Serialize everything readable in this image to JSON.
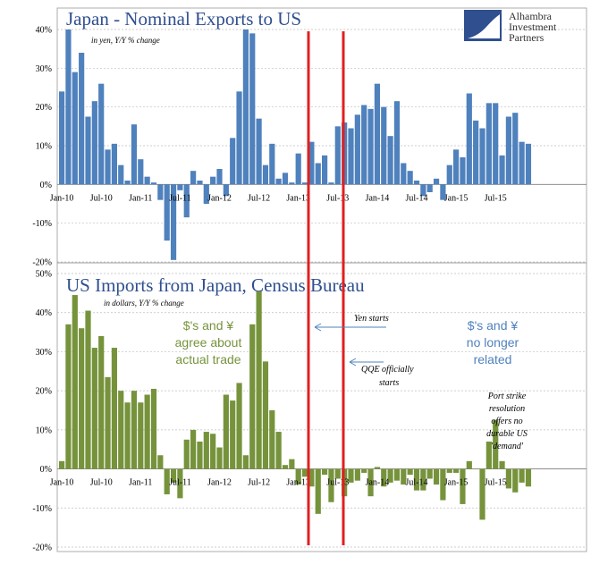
{
  "logo": {
    "line1": "Alhambra",
    "line2": "Investment",
    "line3": "Partners"
  },
  "chart_data": [
    {
      "type": "bar",
      "title": "Japan - Nominal Exports to US",
      "subtitle": "in yen, Y/Y % change",
      "color": "#4f81bd",
      "ylim": [
        -20,
        40
      ],
      "ytick_labels": [
        "40%",
        "30%",
        "20%",
        "10%",
        "0%",
        "-10%",
        "-20%"
      ],
      "ytick_values": [
        40,
        30,
        20,
        10,
        0,
        -10,
        -20
      ],
      "xtick_labels": [
        "Jan-10",
        "Jul-10",
        "Jan-11",
        "Jul-11",
        "Jan-12",
        "Jul-12",
        "Jan-13",
        "Jul-13",
        "Jan-14",
        "Jul-14",
        "Jan-15",
        "Jul-15"
      ],
      "grid": true,
      "start": "Jan-10",
      "values": [
        24,
        40,
        29,
        34,
        17.5,
        21.5,
        26,
        9,
        10.5,
        5,
        1,
        15.5,
        6.5,
        2,
        0.5,
        -4,
        -14.5,
        -19.5,
        -1.5,
        -8.5,
        3.5,
        1,
        -5,
        2,
        4,
        -3,
        12,
        24,
        40,
        39,
        17,
        5,
        10.5,
        1.5,
        3,
        0.5,
        8,
        0.5,
        11,
        5.5,
        7.5,
        0.5,
        15,
        16,
        14.5,
        18,
        20.5,
        19.5,
        26,
        20,
        12.5,
        21.5,
        5.5,
        3.5,
        1,
        -3,
        -2,
        1.5,
        -4,
        5,
        9,
        7,
        23.5,
        16.5,
        14.5,
        21,
        21,
        7.5,
        17.5,
        18.5,
        11,
        10.5
      ]
    },
    {
      "type": "bar",
      "title": "US Imports from Japan, Census Bureau",
      "subtitle": "in dollars, Y/Y % change",
      "color": "#76933c",
      "ylim": [
        -20,
        50
      ],
      "ytick_labels": [
        "50%",
        "40%",
        "30%",
        "20%",
        "10%",
        "0%",
        "-10%",
        "-20%"
      ],
      "ytick_values": [
        50,
        40,
        30,
        20,
        10,
        0,
        -10,
        -20
      ],
      "xtick_labels": [
        "Jan-10",
        "Jul-10",
        "Jan-11",
        "Jul-11",
        "Jan-12",
        "Jul-12",
        "Jan-13",
        "Jul-13",
        "Jan-14",
        "Jul-14",
        "Jan-15",
        "Jul-15"
      ],
      "grid": true,
      "start": "Jan-10",
      "values": [
        2,
        37,
        44.5,
        36,
        40.5,
        31,
        34,
        23.5,
        31,
        20,
        17,
        20,
        17,
        19,
        20.5,
        3.5,
        -6.5,
        -3.5,
        -7.5,
        7.5,
        10,
        7,
        9.5,
        9,
        5.5,
        19,
        17.5,
        22,
        3.5,
        37,
        45.5,
        27.5,
        15,
        9.5,
        1,
        2.5,
        -4,
        -2,
        -4.5,
        -11.5,
        -1.5,
        -8.5,
        -2.5,
        -7,
        -3.5,
        -3,
        -1,
        -7,
        0.5,
        -4.5,
        -3.5,
        -3,
        -4,
        -1.5,
        -5.5,
        -5.5,
        -2.5,
        -4,
        -8,
        -1,
        -1,
        -9,
        2,
        0,
        -13,
        7,
        12.5,
        2,
        -5,
        -6,
        -3.5,
        -4.5
      ]
    }
  ],
  "annotations": {
    "green_line1": "$'s and ¥",
    "green_line2": "agree about",
    "green_line3": "actual trade",
    "blue_line1": "$'s and ¥",
    "blue_line2": "no longer",
    "blue_line3": "related",
    "yen": "Yen starts",
    "qqe_line1": "QQE officially",
    "qqe_line2": "starts",
    "port_line1": "Port strike",
    "port_line2": "resolution",
    "port_line3": "offers no",
    "port_line4": "durable US",
    "port_line5": "'demand'"
  },
  "markers": {
    "color": "#e02020",
    "positions": [
      "Nov-12",
      "Apr-13"
    ]
  }
}
